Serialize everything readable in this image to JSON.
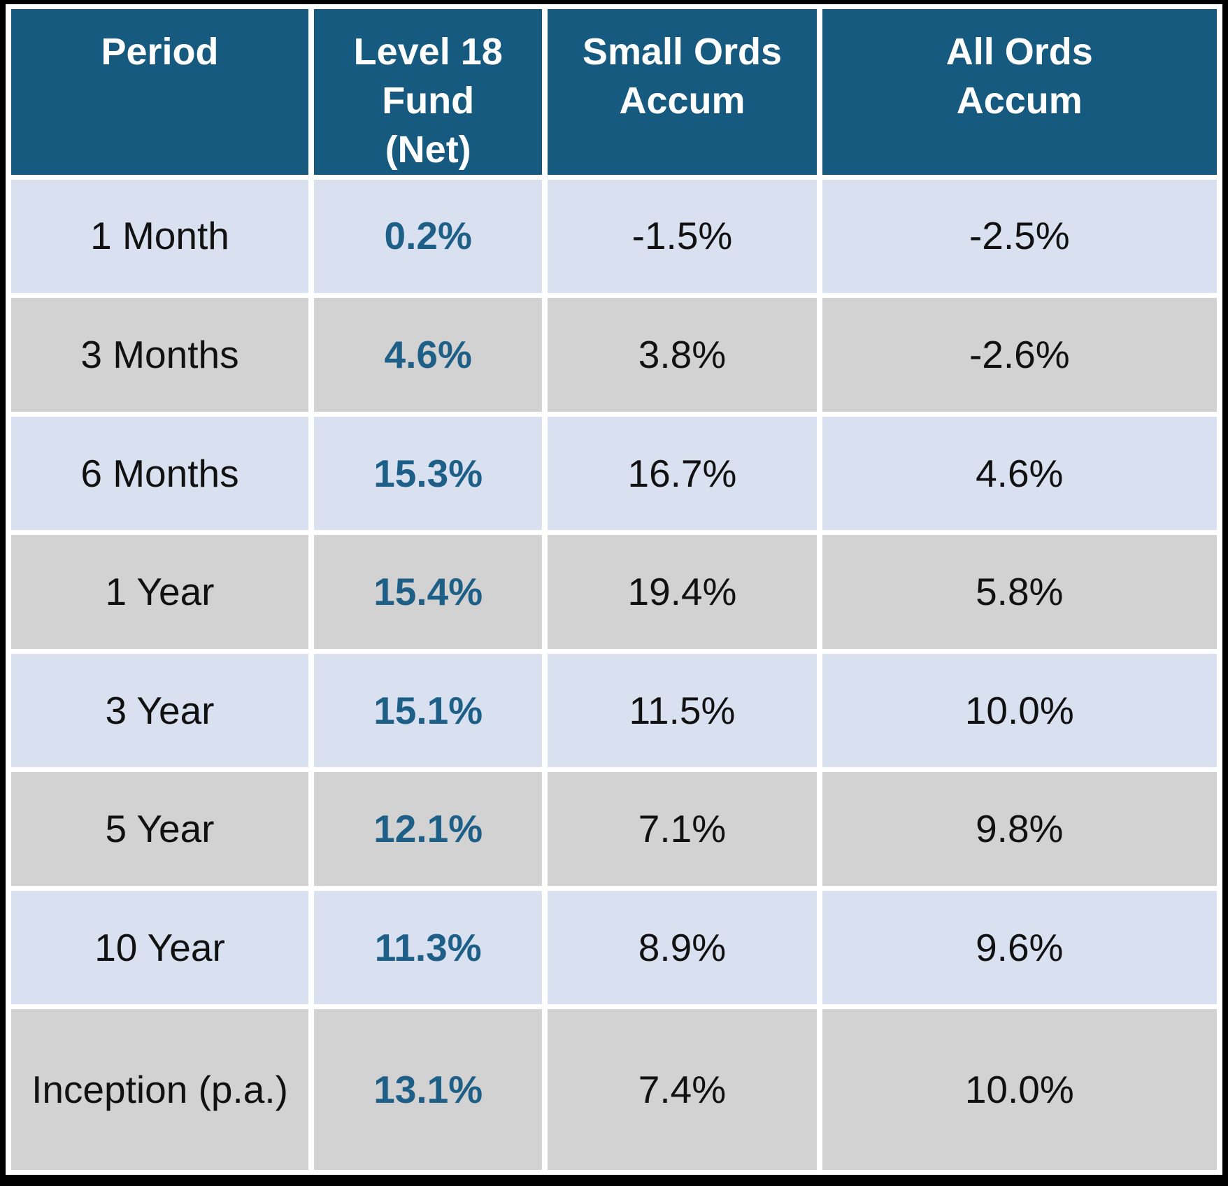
{
  "table": {
    "headers": {
      "period": "Period",
      "fund": "Level 18 Fund (Net)",
      "small_ords": "Small Ords Accum",
      "all_ords": "All Ords Accum"
    },
    "rows": [
      {
        "period": "1 Month",
        "fund": "0.2%",
        "small_ords": "-1.5%",
        "all_ords": "-2.5%"
      },
      {
        "period": "3 Months",
        "fund": "4.6%",
        "small_ords": "3.8%",
        "all_ords": "-2.6%"
      },
      {
        "period": "6 Months",
        "fund": "15.3%",
        "small_ords": "16.7%",
        "all_ords": "4.6%"
      },
      {
        "period": "1 Year",
        "fund": "15.4%",
        "small_ords": "19.4%",
        "all_ords": "5.8%"
      },
      {
        "period": "3 Year",
        "fund": "15.1%",
        "small_ords": "11.5%",
        "all_ords": "10.0%"
      },
      {
        "period": "5 Year",
        "fund": "12.1%",
        "small_ords": "7.1%",
        "all_ords": "9.8%"
      },
      {
        "period": "10 Year",
        "fund": "11.3%",
        "small_ords": "8.9%",
        "all_ords": "9.6%"
      },
      {
        "period": "Inception (p.a.)",
        "fund": "13.1%",
        "small_ords": "7.4%",
        "all_ords": "10.0%"
      }
    ]
  },
  "colors": {
    "header_bg": "#175A80",
    "header_text": "#FFFFFF",
    "row_light": "#D9E1F1",
    "row_gray": "#D3D2D2",
    "fund_text": "#1D5F86"
  },
  "chart_data": {
    "type": "table",
    "columns": [
      "Period",
      "Level 18 Fund (Net)",
      "Small Ords Accum",
      "All Ords Accum"
    ],
    "rows": [
      [
        "1 Month",
        0.2,
        -1.5,
        -2.5
      ],
      [
        "3 Months",
        4.6,
        3.8,
        -2.6
      ],
      [
        "6 Months",
        15.3,
        16.7,
        4.6
      ],
      [
        "1 Year",
        15.4,
        19.4,
        5.8
      ],
      [
        "3 Year",
        15.1,
        11.5,
        10.0
      ],
      [
        "5 Year",
        12.1,
        7.1,
        9.8
      ],
      [
        "10 Year",
        11.3,
        8.9,
        9.6
      ],
      [
        "Inception (p.a.)",
        13.1,
        7.4,
        10.0
      ]
    ],
    "units": "percent",
    "layout_hints": {
      "header_style": "dark-blue, white bold text, top-aligned",
      "row_striping": [
        "light-blue",
        "gray"
      ],
      "fund_column_emphasis": "bold dark-blue values"
    }
  }
}
